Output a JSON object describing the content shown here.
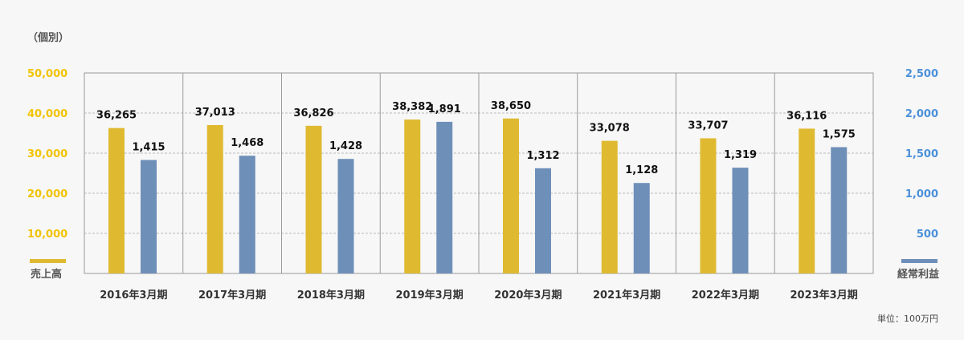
{
  "chart_data": {
    "type": "bar",
    "scope_label": "（個別）",
    "unit_label": "単位：100万円",
    "categories": [
      "2016年3月期",
      "2017年3月期",
      "2018年3月期",
      "2019年3月期",
      "2020年3月期",
      "2021年3月期",
      "2022年3月期",
      "2023年3月期"
    ],
    "series": [
      {
        "name": "売上高",
        "axis": "left",
        "color": "#dfba31",
        "values": [
          36265,
          37013,
          36826,
          38382,
          38650,
          33078,
          33707,
          36116
        ],
        "labels": [
          "36,265",
          "37,013",
          "36,826",
          "38,382",
          "38,650",
          "33,078",
          "33,707",
          "36,116"
        ]
      },
      {
        "name": "経常利益",
        "axis": "right",
        "color": "#6e8fb8",
        "values": [
          1415,
          1468,
          1428,
          1891,
          1312,
          1128,
          1319,
          1575
        ],
        "labels": [
          "1,415",
          "1,468",
          "1,428",
          "1,891",
          "1,312",
          "1,128",
          "1,319",
          "1,575"
        ]
      }
    ],
    "y_left": {
      "range": [
        0,
        50000
      ],
      "ticks": [
        50000,
        40000,
        30000,
        20000,
        10000
      ],
      "tick_labels": [
        "50,000",
        "40,000",
        "30,000",
        "20,000",
        "10,000"
      ],
      "color": "#f2c300"
    },
    "y_right": {
      "range": [
        0,
        2500
      ],
      "ticks": [
        2500,
        2000,
        1500,
        1000,
        500
      ],
      "tick_labels": [
        "2,500",
        "2,000",
        "1,500",
        "1,000",
        "500"
      ],
      "color": "#4a90d9"
    },
    "grid": true
  }
}
